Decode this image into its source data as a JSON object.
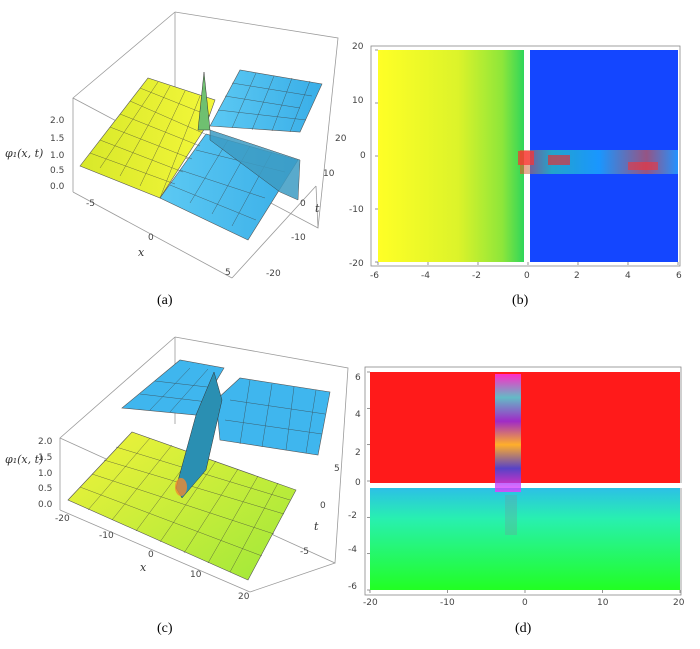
{
  "chart_data": [
    {
      "type": "surface",
      "panel": "(a)",
      "zlabel": "φ₁(x, t)",
      "xlabel": "x",
      "ylabel": "t",
      "xlim": [
        -6,
        6
      ],
      "ylim": [
        -20,
        20
      ],
      "zlim": [
        0,
        2.0
      ],
      "x_ticks": [
        "-5",
        "0",
        "5"
      ],
      "t_ticks": [
        "20",
        "10",
        "0",
        "-10",
        "-20"
      ],
      "z_ticks": [
        "2.0",
        "1.5",
        "1.0",
        "0.5",
        "0.0"
      ],
      "regions": [
        {
          "side": "x<0",
          "level": 0.5,
          "color": "#e6ef2a"
        },
        {
          "side": "x>0",
          "level": 1.0,
          "color": "#3fb6ee"
        }
      ],
      "peak": {
        "x": 0,
        "t": 0,
        "z": 2.0
      }
    },
    {
      "type": "heatmap",
      "panel": "(b)",
      "xlim": [
        -6,
        6
      ],
      "ylim": [
        -20,
        20
      ],
      "x_ticks": [
        "-6",
        "-4",
        "-2",
        "0",
        "2",
        "4",
        "6"
      ],
      "y_ticks": [
        "20",
        "10",
        "0",
        "-10",
        "-20"
      ],
      "regions": [
        {
          "side": "x<0",
          "colors": [
            "#ffff2a",
            "#b8f02a",
            "#44dc44"
          ]
        },
        {
          "side": "x>0",
          "color": "#1446ff"
        }
      ],
      "band": {
        "from_x": 0,
        "to_x": 6,
        "t_start": 0,
        "t_end": -3
      }
    },
    {
      "type": "surface",
      "panel": "(c)",
      "zlabel": "φ₁(x, t)",
      "xlabel": "x",
      "ylabel": "t",
      "xlim": [
        -20,
        20
      ],
      "ylim": [
        -6,
        6
      ],
      "zlim": [
        0,
        2.0
      ],
      "x_ticks": [
        "-20",
        "-10",
        "0",
        "10",
        "20"
      ],
      "t_ticks": [
        "5",
        "0",
        "-5"
      ],
      "z_ticks": [
        "2.0",
        "1.5",
        "1.0",
        "0.5",
        "0.0"
      ],
      "regions": [
        {
          "side": "t>0",
          "level": 1.5,
          "color": "#3fb6ee"
        },
        {
          "side": "t<0",
          "level": 0.5,
          "color": "#c8ee30"
        }
      ],
      "peak": {
        "x": 0,
        "t": 0,
        "z": 1.6
      }
    },
    {
      "type": "heatmap",
      "panel": "(d)",
      "xlim": [
        -20,
        20
      ],
      "ylim": [
        -6,
        6
      ],
      "x_ticks": [
        "-20",
        "-10",
        "0",
        "10",
        "20"
      ],
      "y_ticks": [
        "6",
        "4",
        "2",
        "0",
        "-2",
        "-4",
        "-6"
      ],
      "regions": [
        {
          "side": "t>0",
          "color": "#ff1a1a"
        },
        {
          "side": "t<0",
          "colors": [
            "#2cf0c8",
            "#20f060",
            "#20ff20"
          ]
        }
      ],
      "band": {
        "x_center": -2,
        "t_start": 6,
        "t_end": -3
      }
    }
  ],
  "captions": [
    "(a)",
    "(b)",
    "(c)",
    "(d)"
  ]
}
